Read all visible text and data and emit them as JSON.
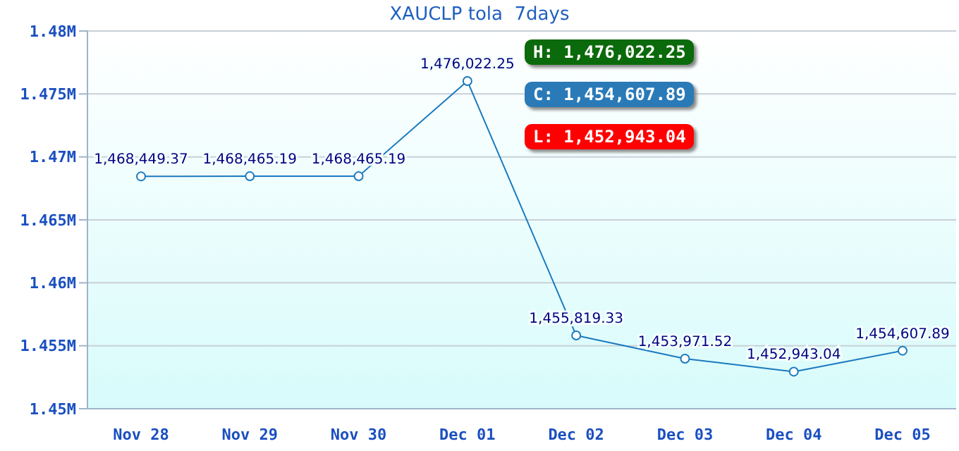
{
  "chart_data": {
    "type": "line",
    "title": "XAUCLP tola  7days",
    "categories": [
      "Nov 28",
      "Nov 29",
      "Nov 30",
      "Dec 01",
      "Dec 02",
      "Dec 03",
      "Dec 04",
      "Dec 05"
    ],
    "series": [
      {
        "color": "#1a7abf",
        "values": [
          1468449.37,
          1468465.19,
          1468465.19,
          1476022.25,
          1455819.33,
          1453971.52,
          1452943.04,
          1454607.89
        ],
        "value_labels": [
          "1,468,449.37",
          "1,468,465.19",
          "1,468,465.19",
          "1,476,022.25",
          "1,455,819.33",
          "1,453,971.52",
          "1,452,943.04",
          "1,454,607.89"
        ]
      }
    ],
    "ylim": [
      1450000,
      1480000
    ],
    "yticks": [
      {
        "value": 1450000,
        "label": "1.45M"
      },
      {
        "value": 1455000,
        "label": "1.455M"
      },
      {
        "value": 1460000,
        "label": "1.46M"
      },
      {
        "value": 1465000,
        "label": "1.465M"
      },
      {
        "value": 1470000,
        "label": "1.47M"
      },
      {
        "value": 1475000,
        "label": "1.475M"
      },
      {
        "value": 1480000,
        "label": "1.48M"
      }
    ],
    "grid": "y",
    "marker": "circle",
    "annotations": [
      "H: 1,476,022.25",
      "C: 1,454,607.89",
      "L: 1,452,943.04"
    ]
  }
}
